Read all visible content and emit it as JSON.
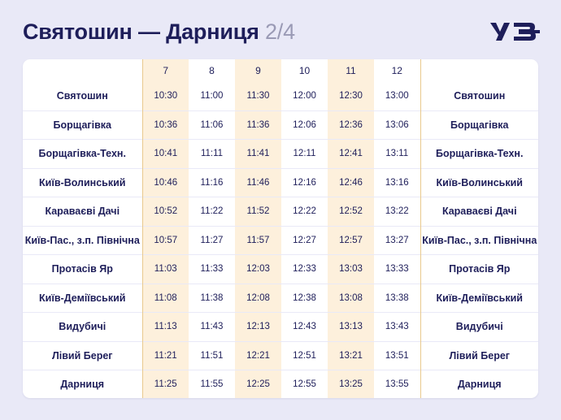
{
  "header": {
    "title": "Святошин — Дарниця",
    "page": "2/4",
    "logo_text": "УЗ"
  },
  "colors": {
    "background": "#e9e9f7",
    "text": "#1e1e5a",
    "highlight_column": "#fdf0dc",
    "divider": "#e9c98d"
  },
  "table": {
    "trains": [
      "7",
      "8",
      "9",
      "10",
      "11",
      "12"
    ],
    "rows": [
      {
        "station": "Святошин",
        "times": [
          "10:30",
          "11:00",
          "11:30",
          "12:00",
          "12:30",
          "13:00"
        ]
      },
      {
        "station": "Борщагівка",
        "times": [
          "10:36",
          "11:06",
          "11:36",
          "12:06",
          "12:36",
          "13:06"
        ]
      },
      {
        "station": "Борщагівка-Техн.",
        "times": [
          "10:41",
          "11:11",
          "11:41",
          "12:11",
          "12:41",
          "13:11"
        ]
      },
      {
        "station": "Київ-Волинський",
        "times": [
          "10:46",
          "11:16",
          "11:46",
          "12:16",
          "12:46",
          "13:16"
        ]
      },
      {
        "station": "Караваєві Дачі",
        "times": [
          "10:52",
          "11:22",
          "11:52",
          "12:22",
          "12:52",
          "13:22"
        ]
      },
      {
        "station": "Київ-Пас., з.п. Північна",
        "times": [
          "10:57",
          "11:27",
          "11:57",
          "12:27",
          "12:57",
          "13:27"
        ]
      },
      {
        "station": "Протасів Яр",
        "times": [
          "11:03",
          "11:33",
          "12:03",
          "12:33",
          "13:03",
          "13:33"
        ]
      },
      {
        "station": "Київ-Деміївський",
        "times": [
          "11:08",
          "11:38",
          "12:08",
          "12:38",
          "13:08",
          "13:38"
        ]
      },
      {
        "station": "Видубичі",
        "times": [
          "11:13",
          "11:43",
          "12:13",
          "12:43",
          "13:13",
          "13:43"
        ]
      },
      {
        "station": "Лівий Берег",
        "times": [
          "11:21",
          "11:51",
          "12:21",
          "12:51",
          "13:21",
          "13:51"
        ]
      },
      {
        "station": "Дарниця",
        "times": [
          "11:25",
          "11:55",
          "12:25",
          "12:55",
          "13:25",
          "13:55"
        ]
      }
    ]
  }
}
